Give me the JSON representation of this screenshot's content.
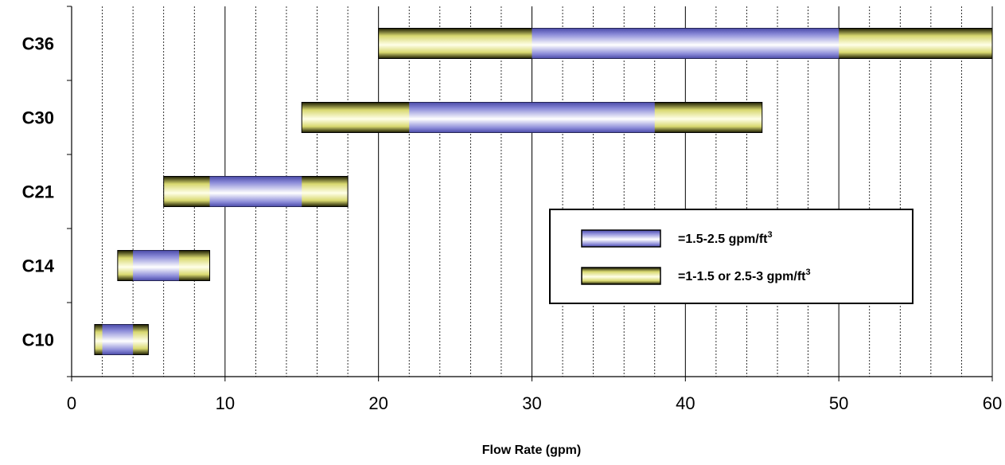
{
  "chart_data": {
    "type": "bar",
    "orientation": "horizontal-range",
    "xlabel": "Flow Rate (gpm)",
    "xlim": [
      0,
      60
    ],
    "x_ticks": [
      0,
      10,
      20,
      30,
      40,
      50,
      60
    ],
    "minor_gridline_step": 2,
    "categories": [
      "C36",
      "C30",
      "C21",
      "C14",
      "C10"
    ],
    "series": [
      {
        "name": "=1-1.5 or 2.5-3 gpm/ft³",
        "color": "#f0f08a",
        "ranges": [
          [
            20,
            60
          ],
          [
            15,
            45
          ],
          [
            6,
            18
          ],
          [
            3,
            9
          ],
          [
            1.5,
            5
          ]
        ]
      },
      {
        "name": "=1.5-2.5 gpm/ft³",
        "color": "#6e6ec8",
        "ranges": [
          [
            30,
            50
          ],
          [
            22,
            38
          ],
          [
            9,
            15
          ],
          [
            4,
            7
          ],
          [
            2,
            4
          ]
        ]
      }
    ],
    "legend": {
      "position": "inside-right",
      "entries": [
        {
          "prefix": "=1.5-2.5 gpm/ft",
          "sup": "3",
          "series": 1
        },
        {
          "prefix": "=1-1.5 or 2.5-3 gpm/ft",
          "sup": "3",
          "series": 0
        }
      ]
    },
    "grid": true
  }
}
